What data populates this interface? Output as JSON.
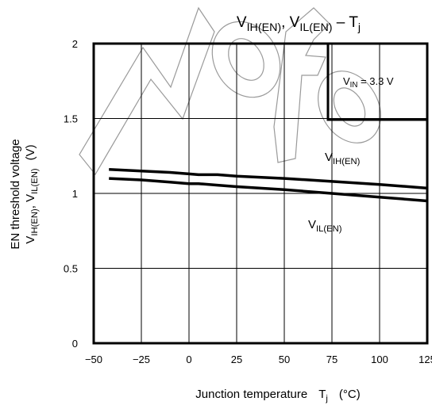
{
  "chart_data": {
    "type": "line",
    "title": {
      "main": "V",
      "sub1": "IH(EN)",
      "sep": ", V",
      "sub2": "IL(EN)",
      "dash": " – T",
      "sub3": "j"
    },
    "ylabel_line1": "EN threshold voltage",
    "ylabel_line2": {
      "a": "V",
      "sub1": "IH(EN)",
      "b": ", V",
      "sub2": "IL(EN)",
      "unit": "(V)"
    },
    "xlabel": {
      "text": "Junction temperature",
      "sym": "T",
      "sub": "j",
      "unit": "(°C)"
    },
    "xlim": [
      -50,
      125
    ],
    "ylim": [
      0,
      2
    ],
    "xticks": [
      -50,
      -25,
      0,
      25,
      50,
      75,
      100,
      125
    ],
    "yticks": [
      0,
      0.5,
      1,
      1.5,
      2
    ],
    "xtick_labels": [
      "−50",
      "−25",
      "0",
      "25",
      "50",
      "75",
      "100",
      "125"
    ],
    "ytick_labels": [
      "0",
      "0.5",
      "1",
      "1.5",
      "2"
    ],
    "grid": true,
    "annotation": {
      "a": "V",
      "sub": "IN",
      "b": " = 3.3 V"
    },
    "series": [
      {
        "name": "VIH(EN)",
        "label_main": "V",
        "label_sub": "IH(EN)",
        "x": [
          -42,
          -25,
          -10,
          0,
          5,
          15,
          25,
          50,
          75,
          100,
          125
        ],
        "y": [
          1.16,
          1.15,
          1.14,
          1.13,
          1.125,
          1.125,
          1.115,
          1.1,
          1.08,
          1.06,
          1.035
        ]
      },
      {
        "name": "VIL(EN)",
        "label_main": "V",
        "label_sub": "IL(EN)",
        "x": [
          -42,
          -25,
          -10,
          0,
          5,
          15,
          25,
          50,
          75,
          100,
          125
        ],
        "y": [
          1.1,
          1.09,
          1.075,
          1.065,
          1.065,
          1.055,
          1.045,
          1.025,
          1.0,
          0.975,
          0.95
        ]
      }
    ]
  }
}
